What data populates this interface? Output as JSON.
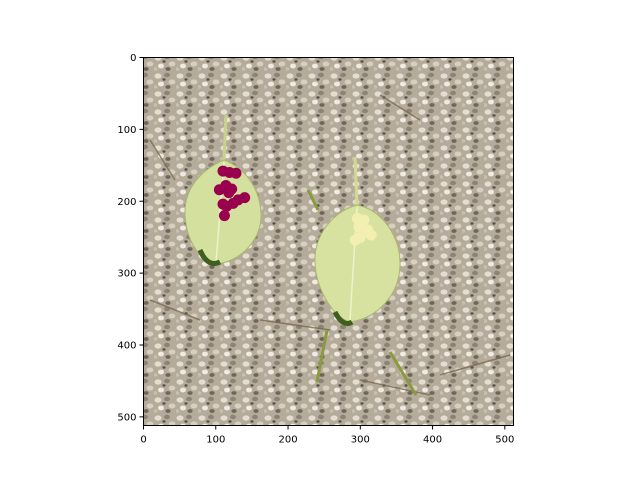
{
  "chart_data": {
    "type": "scatter",
    "title": "",
    "xlabel": "",
    "ylabel": "",
    "xlim": [
      0,
      512
    ],
    "ylim": [
      512,
      0
    ],
    "y_inverted": true,
    "grid": false,
    "background": "image of two pale green leaves lying on gravel",
    "x_ticks": [
      0,
      100,
      200,
      300,
      400,
      500
    ],
    "y_ticks": [
      0,
      100,
      200,
      300,
      400,
      500
    ],
    "series": [
      {
        "color": "#99004d",
        "x": [
          110,
          119,
          128,
          105,
          114,
          122,
          118,
          131,
          140,
          115,
          124,
          110,
          112
        ],
        "y": [
          158,
          160,
          161,
          184,
          178,
          183,
          188,
          198,
          195,
          207,
          203,
          204,
          220
        ]
      },
      {
        "color": "#f2efb0",
        "x": [
          296,
          305,
          298,
          310,
          300,
          315,
          293
        ],
        "y": [
          224,
          226,
          236,
          240,
          250,
          247,
          254
        ]
      }
    ]
  }
}
